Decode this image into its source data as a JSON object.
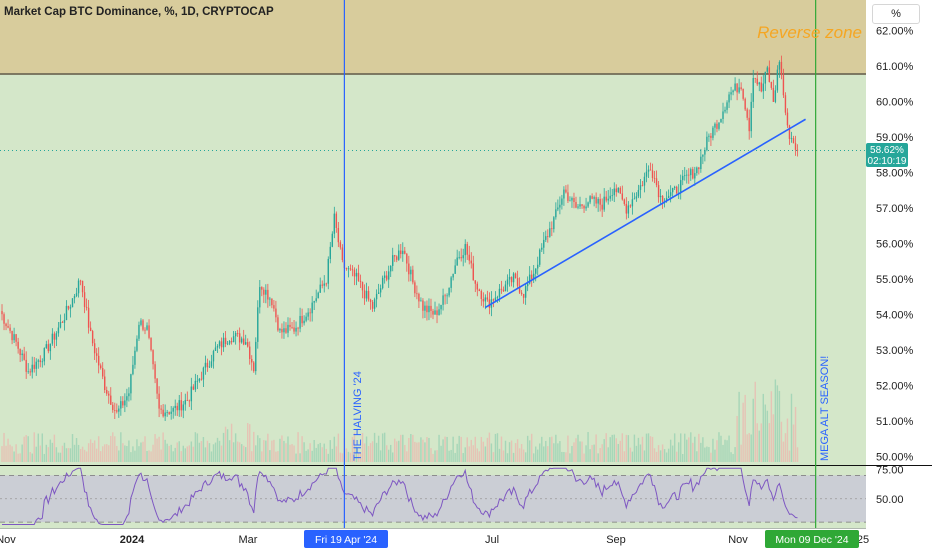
{
  "header": {
    "title": "Market Cap BTC Dominance, %, 1D, CRYPTOCAP",
    "scale_button": "%"
  },
  "colors": {
    "background_green": "#d4e7c9",
    "reverse_zone": "#d8cc9c",
    "reverse_zone_text": "#f5a623",
    "up_candle": "#26a69a",
    "down_candle": "#ef5350",
    "trendline": "#2962ff",
    "halving_line": "#2962ff",
    "alt_season_line": "#2fa836",
    "rsi_line": "#7e57c2",
    "rsi_band": "#c8c6d8"
  },
  "annotations": {
    "reverse_zone": "Reverse zone",
    "halving": "THE HALVING '24",
    "alt_season": "MEGA ALT SEASON!"
  },
  "price_label": {
    "value": "58.62%",
    "countdown": "02:10:19"
  },
  "time_axis": {
    "labels": [
      "Nov",
      "2024",
      "Mar",
      "Jul",
      "Sep",
      "Nov",
      "'25"
    ],
    "halving_date": "Fri 19 Apr '24",
    "alt_season_date": "Mon 09 Dec '24"
  },
  "chart_data": {
    "type": "candlestick",
    "title": "Market Cap BTC Dominance, %, 1D, CRYPTOCAP",
    "y_unit": "%",
    "ylim": [
      49.8,
      62.6
    ],
    "y_ticks": [
      "62.00%",
      "61.00%",
      "60.00%",
      "59.00%",
      "58.00%",
      "57.00%",
      "56.00%",
      "55.00%",
      "54.00%",
      "53.00%",
      "52.00%",
      "51.00%",
      "50.00%"
    ],
    "x_range": [
      "2023-10-31",
      "2025-01-03"
    ],
    "last_value": 58.62,
    "reverse_zone": [
      60.75,
      62.6
    ],
    "trendline": {
      "start": [
        "2024-06-28",
        54.2
      ],
      "end": [
        "2024-12-04",
        59.5
      ]
    },
    "vertical_markers": [
      {
        "date": "2024-04-19",
        "label": "THE HALVING '24"
      },
      {
        "date": "2024-12-09",
        "label": "MEGA ALT SEASON!"
      }
    ],
    "key_points": [
      [
        "2023-10-31",
        54.1
      ],
      [
        "2023-11-08",
        53.2
      ],
      [
        "2023-11-14",
        52.4
      ],
      [
        "2023-11-22",
        52.9
      ],
      [
        "2023-11-28",
        53.5
      ],
      [
        "2023-12-05",
        54.3
      ],
      [
        "2023-12-10",
        55.0
      ],
      [
        "2023-12-15",
        53.4
      ],
      [
        "2023-12-22",
        52.0
      ],
      [
        "2023-12-28",
        51.2
      ],
      [
        "2024-01-03",
        51.8
      ],
      [
        "2024-01-08",
        53.8
      ],
      [
        "2024-01-12",
        53.6
      ],
      [
        "2024-01-18",
        51.3
      ],
      [
        "2024-01-25",
        51.3
      ],
      [
        "2024-02-01",
        51.6
      ],
      [
        "2024-02-08",
        52.3
      ],
      [
        "2024-02-15",
        53.0
      ],
      [
        "2024-02-22",
        53.4
      ],
      [
        "2024-03-01",
        53.3
      ],
      [
        "2024-03-05",
        52.5
      ],
      [
        "2024-03-08",
        54.9
      ],
      [
        "2024-03-14",
        54.4
      ],
      [
        "2024-03-18",
        53.5
      ],
      [
        "2024-03-25",
        53.6
      ],
      [
        "2024-04-02",
        54.2
      ],
      [
        "2024-04-10",
        55.0
      ],
      [
        "2024-04-14",
        56.7
      ],
      [
        "2024-04-18",
        55.4
      ],
      [
        "2024-04-25",
        55.0
      ],
      [
        "2024-05-03",
        54.2
      ],
      [
        "2024-05-08",
        54.9
      ],
      [
        "2024-05-13",
        55.5
      ],
      [
        "2024-05-18",
        55.9
      ],
      [
        "2024-05-23",
        54.9
      ],
      [
        "2024-05-28",
        54.2
      ],
      [
        "2024-06-03",
        54.0
      ],
      [
        "2024-06-08",
        54.5
      ],
      [
        "2024-06-14",
        55.6
      ],
      [
        "2024-06-18",
        55.9
      ],
      [
        "2024-06-23",
        54.9
      ],
      [
        "2024-06-29",
        54.3
      ],
      [
        "2024-07-06",
        54.7
      ],
      [
        "2024-07-12",
        55.0
      ],
      [
        "2024-07-17",
        54.6
      ],
      [
        "2024-07-22",
        55.2
      ],
      [
        "2024-07-27",
        56.0
      ],
      [
        "2024-08-02",
        56.8
      ],
      [
        "2024-08-06",
        57.5
      ],
      [
        "2024-08-12",
        57.0
      ],
      [
        "2024-08-18",
        57.2
      ],
      [
        "2024-08-25",
        57.1
      ],
      [
        "2024-08-31",
        57.6
      ],
      [
        "2024-09-06",
        57.0
      ],
      [
        "2024-09-12",
        57.5
      ],
      [
        "2024-09-18",
        58.2
      ],
      [
        "2024-09-23",
        57.3
      ],
      [
        "2024-09-29",
        57.4
      ],
      [
        "2024-10-05",
        57.8
      ],
      [
        "2024-10-11",
        58.1
      ],
      [
        "2024-10-17",
        59.0
      ],
      [
        "2024-10-22",
        59.5
      ],
      [
        "2024-10-27",
        60.2
      ],
      [
        "2024-11-02",
        60.5
      ],
      [
        "2024-11-06",
        59.3
      ],
      [
        "2024-11-08",
        60.8
      ],
      [
        "2024-11-12",
        60.3
      ],
      [
        "2024-11-15",
        60.9
      ],
      [
        "2024-11-18",
        60.0
      ],
      [
        "2024-11-21",
        61.2
      ],
      [
        "2024-11-25",
        59.2
      ],
      [
        "2024-11-30",
        58.62
      ]
    ],
    "rsi": {
      "levels": [
        70,
        50,
        30
      ],
      "tick_labels": [
        "75.00",
        "50.00"
      ],
      "ylim": [
        25,
        78
      ]
    }
  }
}
